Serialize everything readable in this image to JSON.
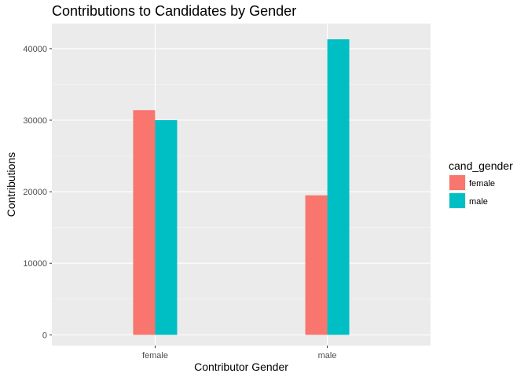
{
  "chart_data": {
    "type": "bar",
    "title": "Contributions to Candidates by Gender",
    "xlabel": "Contributor Gender",
    "ylabel": "Contributions",
    "categories": [
      "female",
      "male"
    ],
    "series": [
      {
        "name": "female",
        "color": "#F8766D",
        "values": [
          31400,
          19500
        ]
      },
      {
        "name": "male",
        "color": "#00BFC4",
        "values": [
          30000,
          41300
        ]
      }
    ],
    "ylim": [
      -1500,
      43500
    ],
    "yticks": [
      0,
      10000,
      20000,
      30000,
      40000
    ],
    "grid": true,
    "legend": {
      "title": "cand_gender",
      "position": "right"
    }
  }
}
